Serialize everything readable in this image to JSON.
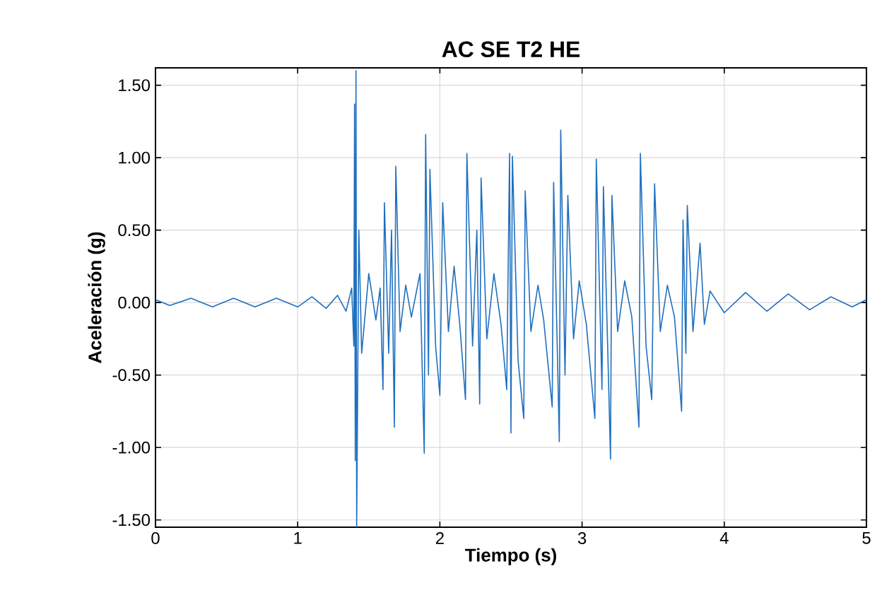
{
  "chart_data": {
    "type": "line",
    "title": "AC SE T2 HE",
    "xlabel": "Tiempo (s)",
    "ylabel": "Aceleración (g)",
    "xlim": [
      0,
      5
    ],
    "xticks": [
      0,
      1,
      2,
      3,
      4,
      5
    ],
    "ylim": [
      -1.55,
      1.62
    ],
    "yticks": [
      {
        "value": -1.5,
        "label": "-1.50"
      },
      {
        "value": -1.0,
        "label": "-1.00"
      },
      {
        "value": -0.5,
        "label": "-0.50"
      },
      {
        "value": 0,
        "label": "0.00"
      },
      {
        "value": 0.5,
        "label": "0.50"
      },
      {
        "value": 1.0,
        "label": "1.00"
      },
      {
        "value": 1.5,
        "label": "1.50"
      }
    ],
    "grid": true,
    "marker": "none",
    "line_style": "solid",
    "series": [
      {
        "color": "#1f6fbf",
        "x": [
          0.0,
          0.1,
          0.25,
          0.4,
          0.55,
          0.7,
          0.85,
          1.0,
          1.1,
          1.2,
          1.28,
          1.34,
          1.38,
          1.395,
          1.4,
          1.405,
          1.41,
          1.415,
          1.43,
          1.45,
          1.5,
          1.55,
          1.58,
          1.6,
          1.61,
          1.64,
          1.66,
          1.68,
          1.69,
          1.72,
          1.76,
          1.8,
          1.86,
          1.89,
          1.9,
          1.92,
          1.93,
          1.97,
          2.0,
          2.02,
          2.06,
          2.1,
          2.14,
          2.18,
          2.19,
          2.23,
          2.26,
          2.28,
          2.29,
          2.33,
          2.38,
          2.43,
          2.47,
          2.49,
          2.5,
          2.51,
          2.55,
          2.59,
          2.6,
          2.64,
          2.69,
          2.73,
          2.79,
          2.8,
          2.84,
          2.85,
          2.88,
          2.9,
          2.94,
          2.98,
          3.03,
          3.09,
          3.1,
          3.14,
          3.15,
          3.18,
          3.2,
          3.21,
          3.25,
          3.3,
          3.35,
          3.4,
          3.41,
          3.45,
          3.49,
          3.51,
          3.55,
          3.6,
          3.65,
          3.7,
          3.71,
          3.73,
          3.74,
          3.78,
          3.83,
          3.86,
          3.9,
          4.0,
          4.15,
          4.3,
          4.45,
          4.6,
          4.75,
          4.9,
          5.0
        ],
        "values": [
          0.02,
          -0.02,
          0.03,
          -0.03,
          0.03,
          -0.03,
          0.03,
          -0.03,
          0.04,
          -0.04,
          0.05,
          -0.06,
          0.1,
          -0.3,
          1.37,
          -1.09,
          1.6,
          -1.55,
          0.5,
          -0.35,
          0.2,
          -0.12,
          0.1,
          -0.6,
          0.69,
          -0.35,
          0.5,
          -0.86,
          0.94,
          -0.2,
          0.12,
          -0.1,
          0.2,
          -1.04,
          1.16,
          -0.5,
          0.92,
          -0.3,
          -0.64,
          0.69,
          -0.2,
          0.25,
          -0.15,
          -0.67,
          1.03,
          -0.3,
          0.5,
          -0.7,
          0.86,
          -0.25,
          0.2,
          -0.15,
          -0.6,
          1.03,
          -0.9,
          1.01,
          -0.4,
          -0.8,
          0.77,
          -0.2,
          0.12,
          -0.12,
          -0.72,
          0.83,
          -0.96,
          1.19,
          -0.5,
          0.74,
          -0.25,
          0.15,
          -0.15,
          -0.8,
          0.99,
          -0.6,
          0.8,
          -0.3,
          -1.08,
          0.74,
          -0.2,
          0.15,
          -0.1,
          -0.86,
          1.03,
          -0.3,
          -0.67,
          0.82,
          -0.2,
          0.12,
          -0.1,
          -0.75,
          0.57,
          -0.35,
          0.67,
          -0.2,
          0.41,
          -0.15,
          0.08,
          -0.07,
          0.07,
          -0.06,
          0.06,
          -0.05,
          0.04,
          -0.03,
          0.02
        ]
      }
    ]
  }
}
